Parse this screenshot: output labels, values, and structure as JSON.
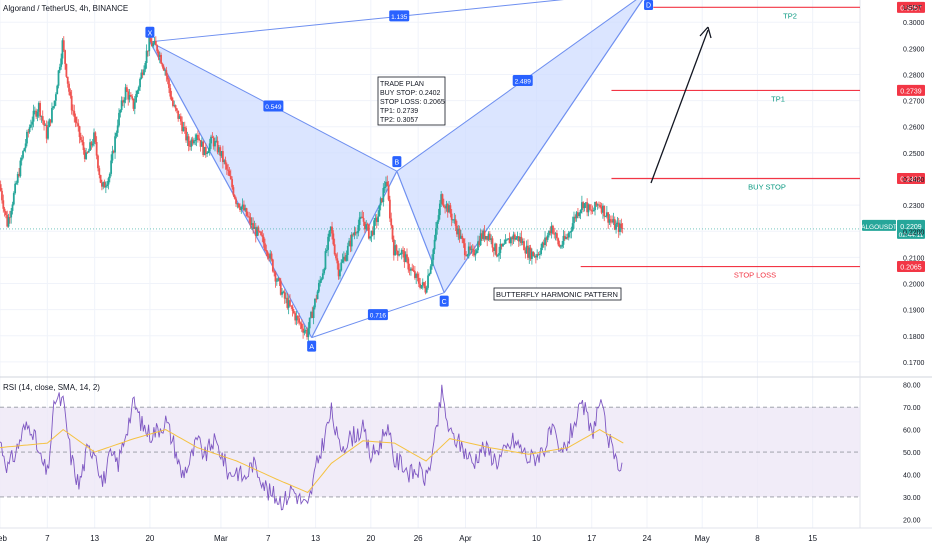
{
  "header": {
    "title": "Algorand / TetherUS, 4h, BINANCE"
  },
  "colors": {
    "up": "#26a69a",
    "down": "#ef5350",
    "pattern_fill": "#cfdcff",
    "pattern_line": "#6e8ff0",
    "pattern_point": "#2962ff",
    "price_line": "#26a69a",
    "level_red": "#f23645",
    "tp_green": "#089981",
    "rsi_line": "#7e57c2",
    "rsi_sma": "#f5c242",
    "rsi_band": "#ede7f6",
    "axis_text": "#131722",
    "grid": "#f0f3fa"
  },
  "chart_data": [
    {
      "type": "candlestick",
      "name": "ALGOUSDT 4h",
      "y_axis": {
        "unit_label": "USDT",
        "ylim": [
          0.165,
          0.3085
        ],
        "ticks": [
          "0.3000",
          "0.2900",
          "0.2800",
          "0.2700",
          "0.2600",
          "0.2500",
          "0.2400",
          "0.2300",
          "0.2200",
          "0.2100",
          "0.2000",
          "0.1900",
          "0.1800",
          "0.1700"
        ]
      },
      "x_axis": {
        "ticks": [
          {
            "label": "Feb",
            "day": 0
          },
          {
            "label": "7",
            "day": 6
          },
          {
            "label": "13",
            "day": 12
          },
          {
            "label": "20",
            "day": 19
          },
          {
            "label": "Mar",
            "day": 28
          },
          {
            "label": "7",
            "day": 34
          },
          {
            "label": "13",
            "day": 40
          },
          {
            "label": "20",
            "day": 47
          },
          {
            "label": "26",
            "day": 53
          },
          {
            "label": "Apr",
            "day": 59
          },
          {
            "label": "10",
            "day": 68
          },
          {
            "label": "17",
            "day": 75
          },
          {
            "label": "24",
            "day": 82
          },
          {
            "label": "May",
            "day": 89
          },
          {
            "label": "8",
            "day": 96
          },
          {
            "label": "15",
            "day": 103
          }
        ],
        "xlim": [
          0,
          109
        ]
      },
      "anchors": [
        [
          0,
          0.238
        ],
        [
          1,
          0.223
        ],
        [
          2,
          0.236
        ],
        [
          3,
          0.25
        ],
        [
          4,
          0.262
        ],
        [
          5,
          0.268
        ],
        [
          6,
          0.257
        ],
        [
          7,
          0.27
        ],
        [
          8,
          0.292
        ],
        [
          9,
          0.27
        ],
        [
          10,
          0.258
        ],
        [
          11,
          0.248
        ],
        [
          12,
          0.256
        ],
        [
          13,
          0.236
        ],
        [
          14,
          0.242
        ],
        [
          15,
          0.262
        ],
        [
          16,
          0.274
        ],
        [
          17,
          0.268
        ],
        [
          18,
          0.28
        ],
        [
          19,
          0.2925
        ],
        [
          20,
          0.29
        ],
        [
          21,
          0.282
        ],
        [
          22,
          0.268
        ],
        [
          23,
          0.262
        ],
        [
          24,
          0.253
        ],
        [
          25,
          0.258
        ],
        [
          26,
          0.25
        ],
        [
          27,
          0.255
        ],
        [
          28,
          0.25
        ],
        [
          29,
          0.242
        ],
        [
          30,
          0.232
        ],
        [
          31,
          0.228
        ],
        [
          32,
          0.222
        ],
        [
          33,
          0.218
        ],
        [
          34,
          0.213
        ],
        [
          35,
          0.203
        ],
        [
          36,
          0.195
        ],
        [
          37,
          0.19
        ],
        [
          38,
          0.185
        ],
        [
          39,
          0.181
        ],
        [
          40,
          0.193
        ],
        [
          41,
          0.205
        ],
        [
          42,
          0.221
        ],
        [
          43,
          0.205
        ],
        [
          44,
          0.212
        ],
        [
          45,
          0.22
        ],
        [
          46,
          0.225
        ],
        [
          47,
          0.218
        ],
        [
          48,
          0.226
        ],
        [
          49,
          0.24
        ],
        [
          50,
          0.213
        ],
        [
          51,
          0.212
        ],
        [
          52,
          0.206
        ],
        [
          53,
          0.201
        ],
        [
          54,
          0.198
        ],
        [
          55,
          0.213
        ],
        [
          56,
          0.233
        ],
        [
          57,
          0.228
        ],
        [
          58,
          0.221
        ],
        [
          59,
          0.213
        ],
        [
          60,
          0.211
        ],
        [
          61,
          0.218
        ],
        [
          62,
          0.219
        ],
        [
          63,
          0.212
        ],
        [
          64,
          0.214
        ],
        [
          65,
          0.218
        ],
        [
          66,
          0.217
        ],
        [
          67,
          0.212
        ],
        [
          68,
          0.211
        ],
        [
          69,
          0.215
        ],
        [
          70,
          0.222
        ],
        [
          71,
          0.214
        ],
        [
          72,
          0.218
        ],
        [
          73,
          0.226
        ],
        [
          74,
          0.231
        ],
        [
          75,
          0.227
        ],
        [
          76,
          0.231
        ],
        [
          77,
          0.226
        ],
        [
          78,
          0.222
        ],
        [
          79,
          0.2209
        ]
      ],
      "current_price": {
        "label": "ALGOUSDT",
        "value": "0.2209",
        "countdown": "02:44:11",
        "price": 0.2209
      }
    },
    {
      "type": "line",
      "name": "RSI (14, close, SMA, 14, 2)",
      "y_axis": {
        "ylim": [
          17.5,
          83
        ],
        "ticks": [
          "80.00",
          "70.00",
          "60.00",
          "50.00",
          "40.00",
          "30.00",
          "20.00"
        ]
      },
      "bands": [
        70,
        50,
        30
      ],
      "anchors": [
        [
          0,
          55
        ],
        [
          1,
          43
        ],
        [
          2,
          50
        ],
        [
          3,
          60
        ],
        [
          4,
          62
        ],
        [
          5,
          48
        ],
        [
          6,
          40
        ],
        [
          7,
          74
        ],
        [
          8,
          72
        ],
        [
          9,
          48
        ],
        [
          10,
          35
        ],
        [
          11,
          50
        ],
        [
          12,
          52
        ],
        [
          13,
          36
        ],
        [
          14,
          48
        ],
        [
          15,
          45
        ],
        [
          16,
          60
        ],
        [
          17,
          72
        ],
        [
          18,
          62
        ],
        [
          19,
          58
        ],
        [
          20,
          60
        ],
        [
          21,
          64
        ],
        [
          22,
          54
        ],
        [
          23,
          40
        ],
        [
          24,
          45
        ],
        [
          25,
          55
        ],
        [
          26,
          48
        ],
        [
          27,
          55
        ],
        [
          28,
          50
        ],
        [
          29,
          40
        ],
        [
          30,
          42
        ],
        [
          31,
          38
        ],
        [
          32,
          45
        ],
        [
          33,
          40
        ],
        [
          34,
          32
        ],
        [
          35,
          30
        ],
        [
          36,
          28
        ],
        [
          37,
          34
        ],
        [
          38,
          29
        ],
        [
          39,
          25
        ],
        [
          40,
          42
        ],
        [
          41,
          55
        ],
        [
          42,
          68
        ],
        [
          43,
          52
        ],
        [
          44,
          55
        ],
        [
          45,
          58
        ],
        [
          46,
          60
        ],
        [
          47,
          48
        ],
        [
          48,
          52
        ],
        [
          49,
          62
        ],
        [
          50,
          46
        ],
        [
          51,
          45
        ],
        [
          52,
          40
        ],
        [
          53,
          42
        ],
        [
          54,
          38
        ],
        [
          55,
          52
        ],
        [
          56,
          76
        ],
        [
          57,
          58
        ],
        [
          58,
          55
        ],
        [
          59,
          50
        ],
        [
          60,
          45
        ],
        [
          61,
          52
        ],
        [
          62,
          50
        ],
        [
          63,
          46
        ],
        [
          64,
          50
        ],
        [
          65,
          55
        ],
        [
          66,
          52
        ],
        [
          67,
          47
        ],
        [
          68,
          48
        ],
        [
          69,
          52
        ],
        [
          70,
          60
        ],
        [
          71,
          48
        ],
        [
          72,
          55
        ],
        [
          73,
          65
        ],
        [
          74,
          70
        ],
        [
          75,
          58
        ],
        [
          76,
          72
        ],
        [
          77,
          58
        ],
        [
          78,
          45
        ],
        [
          79,
          46
        ]
      ],
      "sma_anchors": [
        [
          0,
          52
        ],
        [
          6,
          54
        ],
        [
          8,
          60
        ],
        [
          12,
          50
        ],
        [
          17,
          56
        ],
        [
          21,
          60
        ],
        [
          25,
          52
        ],
        [
          30,
          46
        ],
        [
          35,
          38
        ],
        [
          39,
          32
        ],
        [
          42,
          45
        ],
        [
          46,
          55
        ],
        [
          50,
          54
        ],
        [
          54,
          46
        ],
        [
          57,
          56
        ],
        [
          62,
          52
        ],
        [
          67,
          49
        ],
        [
          72,
          52
        ],
        [
          76,
          60
        ],
        [
          79,
          54
        ]
      ]
    }
  ],
  "harmonic": {
    "points": [
      {
        "label": "X",
        "day": 19,
        "price": 0.2925
      },
      {
        "label": "A",
        "day": 39.5,
        "price": 0.1793
      },
      {
        "label": "B",
        "day": 50.3,
        "price": 0.243
      },
      {
        "label": "C",
        "day": 56.3,
        "price": 0.1965
      },
      {
        "label": "D",
        "day": 82.2,
        "price": 0.312
      }
    ],
    "ratios": {
      "XA_XB": "0.549",
      "AB_AC": "0.716",
      "BC_BD": "2.489",
      "XB_XD": "1.135"
    },
    "pattern_label": "BUTTERFLY HARMONIC PATTERN"
  },
  "trade_plan": {
    "lines": [
      "TRADE PLAN",
      "BUY STOP: 0.2402",
      "STOP LOSS: 0.2065",
      "TP1: 0.2739",
      "TP2: 0.3057"
    ]
  },
  "levels": [
    {
      "name": "TP2",
      "price": 0.3057,
      "label": "0.3057",
      "color": "tp_green"
    },
    {
      "name": "TP1",
      "price": 0.2739,
      "label": "0.2739",
      "color": "tp_green"
    },
    {
      "name": "BUY STOP",
      "price": 0.2402,
      "label": "0.2402",
      "color": "tp_green"
    },
    {
      "name": "STOP LOSS",
      "price": 0.2065,
      "label": "0.2065",
      "color": "level_red"
    }
  ]
}
